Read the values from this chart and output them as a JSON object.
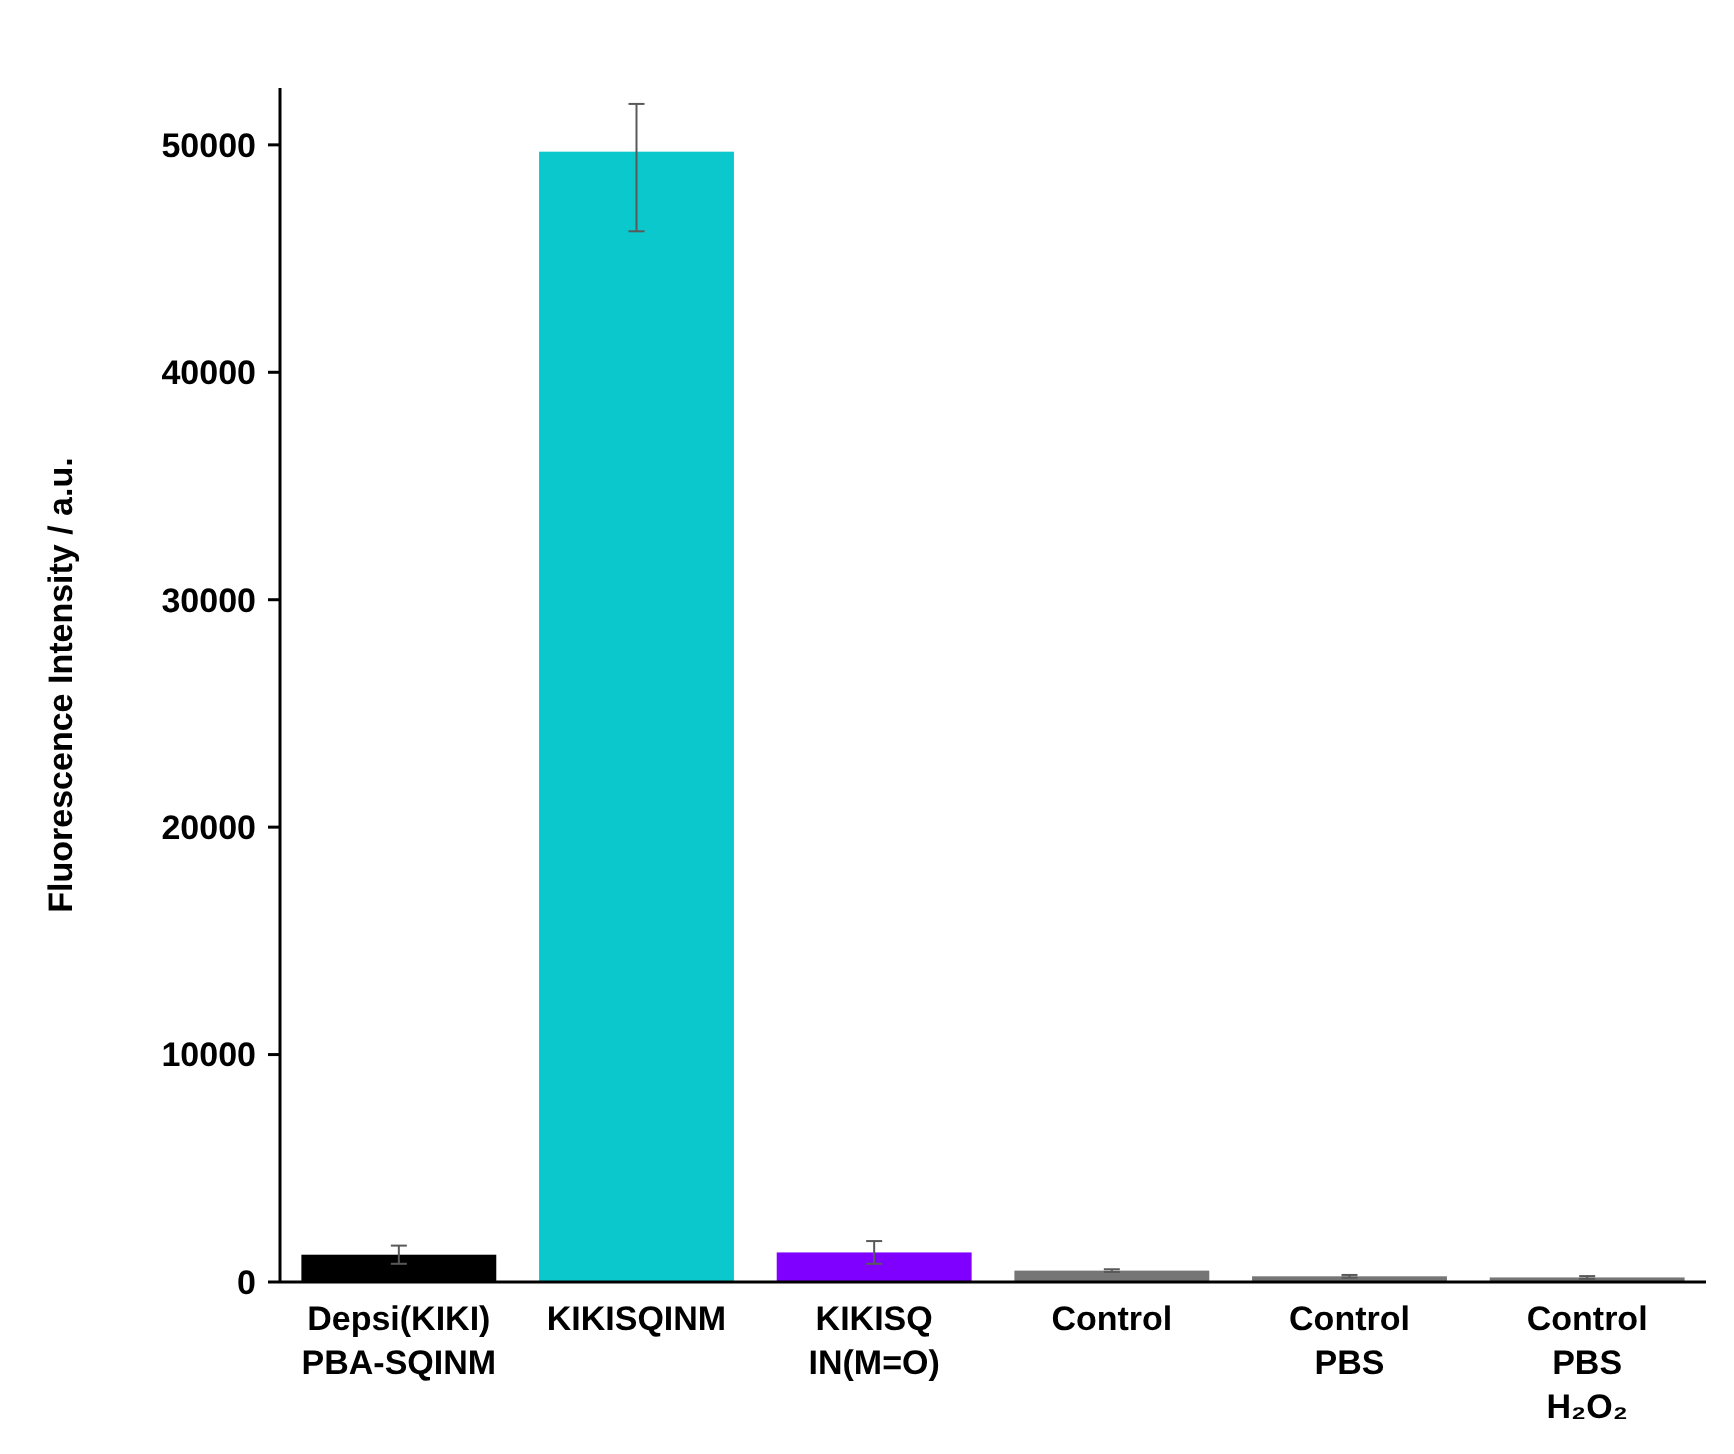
{
  "chart_data": {
    "type": "bar",
    "ylabel": "Fluorescence Intensity / a.u.",
    "categories": [
      "Depsi(KIKI)\nPBA-SQINM",
      "KIKISQINM",
      "KIKISQ\nIN(M=O)",
      "Control",
      "Control\nPBS",
      "Control\nPBS\nH₂O₂"
    ],
    "values": [
      1200,
      49700,
      1300,
      500,
      250,
      200
    ],
    "colors": [
      "#000000",
      "#0bc8cc",
      "#7f00ff",
      "#767676",
      "#767676",
      "#767676"
    ],
    "errors": [
      400,
      [
        46200,
        51800
      ],
      500,
      60,
      60,
      60
    ],
    "ylim": [
      0,
      52500
    ],
    "yticks": [
      0,
      10000,
      20000,
      30000,
      40000,
      50000
    ],
    "grid": false
  }
}
